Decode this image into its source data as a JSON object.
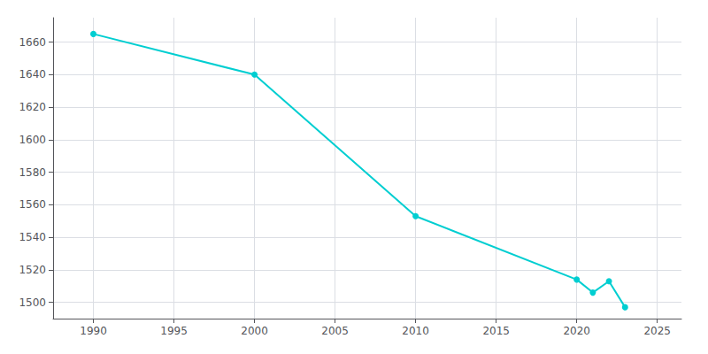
{
  "chart_data": {
    "type": "line",
    "x": [
      1990,
      2000,
      2010,
      2020,
      2021,
      2022,
      2023
    ],
    "values": [
      1665,
      1640,
      1553,
      1514,
      1506,
      1513,
      1497
    ],
    "color": "#00CED1",
    "marker": "circle",
    "xlim": [
      1987.5,
      2026.5
    ],
    "ylim": [
      1490,
      1675
    ],
    "xticks": [
      1990,
      1995,
      2000,
      2005,
      2010,
      2015,
      2020,
      2025
    ],
    "yticks": [
      1500,
      1520,
      1540,
      1560,
      1580,
      1600,
      1620,
      1640,
      1660
    ],
    "grid": true
  }
}
